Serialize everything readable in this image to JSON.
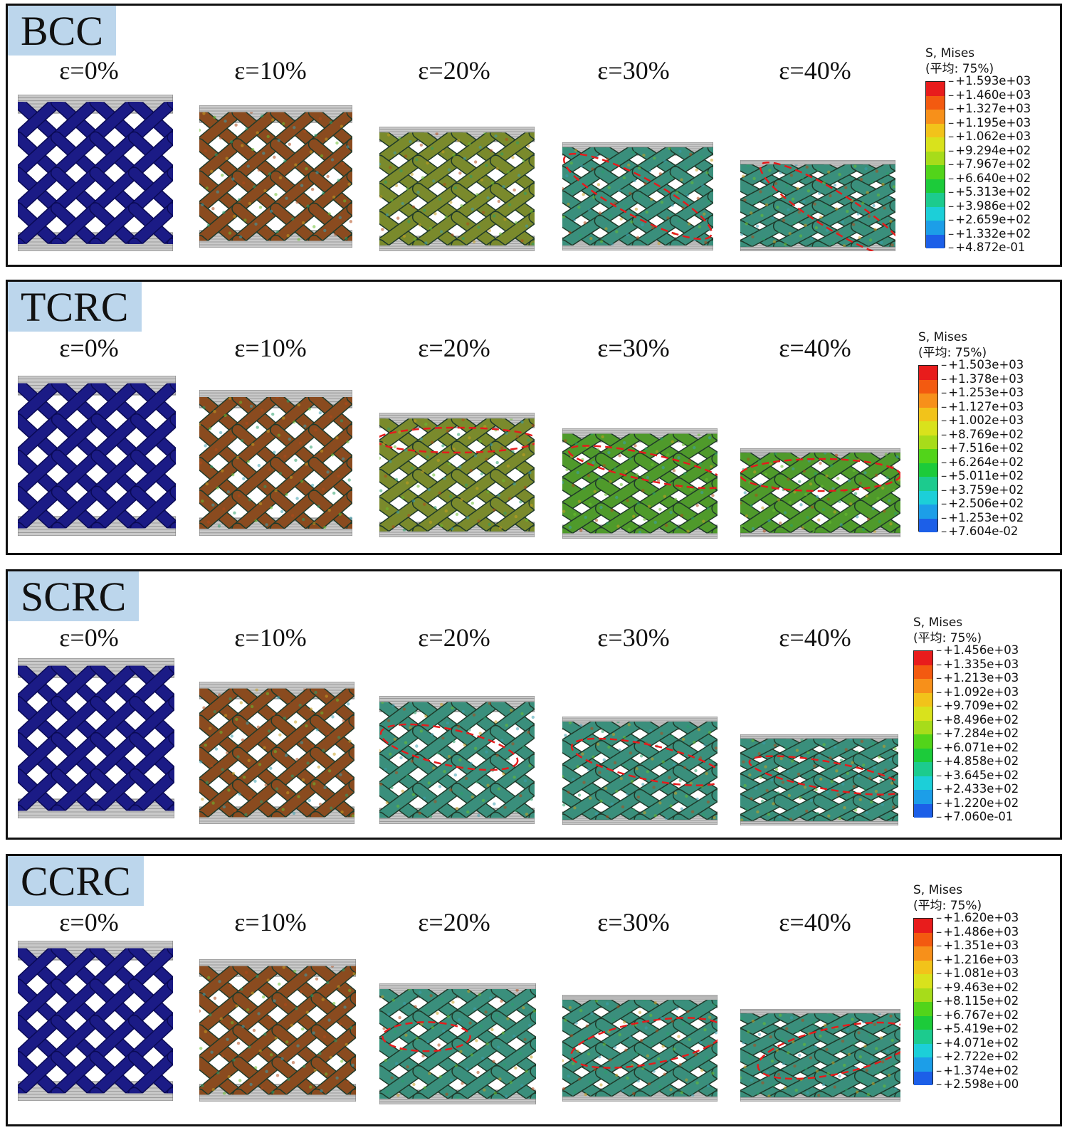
{
  "strains": [
    "ε=0%",
    "ε=10%",
    "ε=20%",
    "ε=30%",
    "ε=40%"
  ],
  "legend_colors": [
    "#e81c1c",
    "#f35a10",
    "#f7901a",
    "#f2c31a",
    "#d9e21c",
    "#a7dc1a",
    "#52d41a",
    "#1ccb3a",
    "#1ccb8e",
    "#1ccfd8",
    "#1c9ee8",
    "#1c5fe8",
    "#1c1ce8"
  ],
  "fill_colors": {
    "blue": "#1b1b86",
    "edge_blue": "#0a0a55",
    "green": "#4f9a2b",
    "teal": "#3a8f7c",
    "olive": "#7a8a2c",
    "rust": "#8a4b1f",
    "dashed_ellipse": "#e41c1c",
    "platen": "#9c9c9c"
  },
  "panels": [
    {
      "label": "BCC",
      "legend_title": "S, Mises",
      "legend_subtitle": "(平均: 75%)",
      "legend_values": [
        "+1.593e+03",
        "+1.460e+03",
        "+1.327e+03",
        "+1.195e+03",
        "+1.062e+03",
        "+9.294e+02",
        "+7.967e+02",
        "+6.640e+02",
        "+5.313e+02",
        "+3.986e+02",
        "+2.659e+02",
        "+1.332e+02",
        "+4.872e-01"
      ]
    },
    {
      "label": "TCRC",
      "legend_title": "S, Mises",
      "legend_subtitle": "(平均: 75%)",
      "legend_values": [
        "+1.503e+03",
        "+1.378e+03",
        "+1.253e+03",
        "+1.127e+03",
        "+1.002e+03",
        "+8.769e+02",
        "+7.516e+02",
        "+6.264e+02",
        "+5.011e+02",
        "+3.759e+02",
        "+2.506e+02",
        "+1.253e+02",
        "+7.604e-02"
      ]
    },
    {
      "label": "SCRC",
      "legend_title": "S, Mises",
      "legend_subtitle": "(平均: 75%)",
      "legend_values": [
        "+1.456e+03",
        "+1.335e+03",
        "+1.213e+03",
        "+1.092e+03",
        "+9.709e+02",
        "+8.496e+02",
        "+7.284e+02",
        "+6.071e+02",
        "+4.858e+02",
        "+3.645e+02",
        "+2.433e+02",
        "+1.220e+02",
        "+7.060e-01"
      ]
    },
    {
      "label": "CCRC",
      "legend_title": "S, Mises",
      "legend_subtitle": "(平均: 75%)",
      "legend_values": [
        "+1.620e+03",
        "+1.486e+03",
        "+1.351e+03",
        "+1.216e+03",
        "+1.081e+03",
        "+9.463e+02",
        "+8.115e+02",
        "+6.767e+02",
        "+5.419e+02",
        "+4.071e+02",
        "+2.722e+02",
        "+1.374e+02",
        "+2.598e+00"
      ]
    }
  ]
}
